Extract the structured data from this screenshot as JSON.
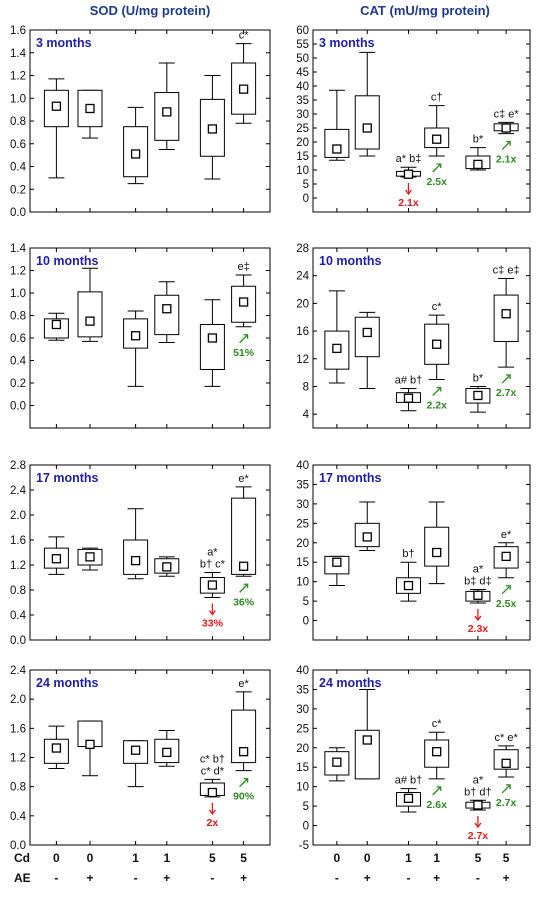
{
  "column_titles": [
    "SOD (U/mg protein)",
    "CAT (mU/mg protein)"
  ],
  "x_axis": {
    "rows": [
      {
        "label": "Cd",
        "values": [
          "0",
          "0",
          "1",
          "1",
          "5",
          "5"
        ]
      },
      {
        "label": "AE",
        "values": [
          "-",
          "+",
          "-",
          "+",
          "-",
          "+"
        ]
      }
    ]
  },
  "colors": {
    "title": "#1f3a8a",
    "panel_label": "#1f1fa8",
    "decrease": "#e31a1c",
    "increase": "#2e8b22",
    "box": "#000000"
  },
  "chart_data": [
    {
      "type": "box",
      "title": "3 months",
      "column": "SOD (U/mg protein)",
      "ylim": [
        0,
        1.6
      ],
      "yticks": [
        "0.0",
        "0.2",
        "0.4",
        "0.6",
        "0.8",
        "1.0",
        "1.2",
        "1.4",
        "1.6"
      ],
      "categories": [
        "Cd 0 / AE -",
        "Cd 0 / AE +",
        "Cd 1 / AE -",
        "Cd 1 / AE +",
        "Cd 5 / AE -",
        "Cd 5 / AE +"
      ],
      "boxes": [
        {
          "min": 0.3,
          "q1": 0.75,
          "median": 0.92,
          "mean": 0.93,
          "q3": 1.07,
          "max": 1.17
        },
        {
          "min": 0.65,
          "q1": 0.75,
          "median": 0.95,
          "mean": 0.91,
          "q3": 1.07,
          "max": 1.07
        },
        {
          "min": 0.25,
          "q1": 0.31,
          "median": 0.55,
          "mean": 0.51,
          "q3": 0.75,
          "max": 0.92
        },
        {
          "min": 0.55,
          "q1": 0.63,
          "median": 0.85,
          "mean": 0.88,
          "q3": 1.05,
          "max": 1.31
        },
        {
          "min": 0.29,
          "q1": 0.49,
          "median": 0.7,
          "mean": 0.73,
          "q3": 0.99,
          "max": 1.2
        },
        {
          "min": 0.78,
          "q1": 0.86,
          "median": 1.1,
          "mean": 1.08,
          "q3": 1.31,
          "max": 1.48
        }
      ],
      "annotations": [
        {
          "category": 5,
          "text": "c*"
        }
      ],
      "fold_changes": []
    },
    {
      "type": "box",
      "title": "3 months",
      "column": "CAT (mU/mg protein)",
      "ylim": [
        -5,
        60
      ],
      "yticks": [
        "0",
        "5",
        "10",
        "15",
        "20",
        "25",
        "30",
        "35",
        "40",
        "45",
        "50",
        "55",
        "60"
      ],
      "categories": [
        "Cd 0 / AE -",
        "Cd 0 / AE +",
        "Cd 1 / AE -",
        "Cd 1 / AE +",
        "Cd 5 / AE -",
        "Cd 5 / AE +"
      ],
      "boxes": [
        {
          "min": 13.5,
          "q1": 14.5,
          "median": 17.0,
          "mean": 17.5,
          "q3": 24.5,
          "max": 38.5
        },
        {
          "min": 15.0,
          "q1": 17.5,
          "median": 24.0,
          "mean": 25.0,
          "q3": 36.5,
          "max": 52.0
        },
        {
          "min": 7.5,
          "q1": 7.8,
          "median": 8.5,
          "mean": 8.5,
          "q3": 9.5,
          "max": 11.0
        },
        {
          "min": 15.0,
          "q1": 18.0,
          "median": 21.0,
          "mean": 21.0,
          "q3": 25.0,
          "max": 33.0
        },
        {
          "min": 10.0,
          "q1": 10.5,
          "median": 12.0,
          "mean": 12.0,
          "q3": 15.0,
          "max": 18.0
        },
        {
          "min": 23.0,
          "q1": 24.0,
          "median": 25.0,
          "mean": 25.0,
          "q3": 26.5,
          "max": 27.0
        }
      ],
      "annotations": [
        {
          "category": 2,
          "text": "a* b‡"
        },
        {
          "category": 3,
          "text": "c†"
        },
        {
          "category": 4,
          "text": "b*"
        },
        {
          "category": 5,
          "text": "c‡ e*"
        }
      ],
      "fold_changes": [
        {
          "category": 2,
          "direction": "down",
          "text": "2.1x"
        },
        {
          "category": 3,
          "direction": "up",
          "text": "2.5x"
        },
        {
          "category": 5,
          "direction": "up",
          "text": "2.1x"
        }
      ]
    },
    {
      "type": "box",
      "title": "10 months",
      "column": "SOD (U/mg protein)",
      "ylim": [
        -0.2,
        1.4
      ],
      "yticks": [
        "0.0",
        "0.2",
        "0.4",
        "0.6",
        "0.8",
        "1.0",
        "1.2",
        "1.4"
      ],
      "categories": [
        "Cd 0 / AE -",
        "Cd 0 / AE +",
        "Cd 1 / AE -",
        "Cd 1 / AE +",
        "Cd 5 / AE -",
        "Cd 5 / AE +"
      ],
      "boxes": [
        {
          "min": 0.58,
          "q1": 0.6,
          "median": 0.7,
          "mean": 0.72,
          "q3": 0.77,
          "max": 0.82
        },
        {
          "min": 0.57,
          "q1": 0.61,
          "median": 0.75,
          "mean": 0.75,
          "q3": 1.01,
          "max": 1.22
        },
        {
          "min": 0.17,
          "q1": 0.51,
          "median": 0.65,
          "mean": 0.62,
          "q3": 0.77,
          "max": 0.84
        },
        {
          "min": 0.56,
          "q1": 0.63,
          "median": 0.86,
          "mean": 0.86,
          "q3": 0.98,
          "max": 1.1
        },
        {
          "min": 0.17,
          "q1": 0.32,
          "median": 0.55,
          "mean": 0.6,
          "q3": 0.72,
          "max": 0.94
        },
        {
          "min": 0.7,
          "q1": 0.74,
          "median": 0.93,
          "mean": 0.92,
          "q3": 1.06,
          "max": 1.16
        }
      ],
      "annotations": [
        {
          "category": 5,
          "text": "e‡"
        }
      ],
      "fold_changes": [
        {
          "category": 5,
          "direction": "up",
          "text": "51%"
        }
      ]
    },
    {
      "type": "box",
      "title": "10 months",
      "column": "CAT (mU/mg protein)",
      "ylim": [
        2,
        28
      ],
      "yticks": [
        "4",
        "8",
        "12",
        "16",
        "20",
        "24",
        "28"
      ],
      "categories": [
        "Cd 0 / AE -",
        "Cd 0 / AE +",
        "Cd 1 / AE -",
        "Cd 1 / AE +",
        "Cd 5 / AE -",
        "Cd 5 / AE +"
      ],
      "boxes": [
        {
          "min": 8.5,
          "q1": 10.5,
          "median": 13.0,
          "mean": 13.5,
          "q3": 16.0,
          "max": 21.8
        },
        {
          "min": 7.7,
          "q1": 12.3,
          "median": 16.0,
          "mean": 15.8,
          "q3": 18.0,
          "max": 18.7
        },
        {
          "min": 4.5,
          "q1": 5.7,
          "median": 6.5,
          "mean": 6.3,
          "q3": 7.1,
          "max": 7.7
        },
        {
          "min": 9.0,
          "q1": 11.2,
          "median": 14.0,
          "mean": 14.1,
          "q3": 17.0,
          "max": 18.3
        },
        {
          "min": 4.3,
          "q1": 5.6,
          "median": 6.5,
          "mean": 6.7,
          "q3": 7.7,
          "max": 8.0
        },
        {
          "min": 10.8,
          "q1": 14.5,
          "median": 18.5,
          "mean": 18.5,
          "q3": 21.2,
          "max": 23.6
        }
      ],
      "annotations": [
        {
          "category": 2,
          "text": "a# b†"
        },
        {
          "category": 3,
          "text": "c*"
        },
        {
          "category": 4,
          "text": "b*"
        },
        {
          "category": 5,
          "text": "c‡ e‡"
        }
      ],
      "fold_changes": [
        {
          "category": 3,
          "direction": "up",
          "text": "2.2x"
        },
        {
          "category": 5,
          "direction": "up",
          "text": "2.7x"
        }
      ]
    },
    {
      "type": "box",
      "title": "17 months",
      "column": "SOD (U/mg protein)",
      "ylim": [
        0,
        2.8
      ],
      "yticks": [
        "0.0",
        "0.4",
        "0.8",
        "1.2",
        "1.6",
        "2.0",
        "2.4",
        "2.8"
      ],
      "categories": [
        "Cd 0 / AE -",
        "Cd 0 / AE +",
        "Cd 1 / AE -",
        "Cd 1 / AE +",
        "Cd 5 / AE -",
        "Cd 5 / AE +"
      ],
      "boxes": [
        {
          "min": 1.05,
          "q1": 1.15,
          "median": 1.3,
          "mean": 1.3,
          "q3": 1.47,
          "max": 1.65
        },
        {
          "min": 1.12,
          "q1": 1.2,
          "median": 1.3,
          "mean": 1.33,
          "q3": 1.45,
          "max": 1.47
        },
        {
          "min": 0.98,
          "q1": 1.05,
          "median": 1.25,
          "mean": 1.27,
          "q3": 1.6,
          "max": 2.1
        },
        {
          "min": 1.02,
          "q1": 1.07,
          "median": 1.2,
          "mean": 1.17,
          "q3": 1.3,
          "max": 1.33
        },
        {
          "min": 0.68,
          "q1": 0.75,
          "median": 0.88,
          "mean": 0.88,
          "q3": 1.0,
          "max": 1.08
        },
        {
          "min": 1.02,
          "q1": 1.05,
          "median": 1.25,
          "mean": 1.18,
          "q3": 2.27,
          "max": 2.45
        }
      ],
      "annotations": [
        {
          "category": 4,
          "text": "a*"
        },
        {
          "category": 4,
          "text": "b† c*"
        },
        {
          "category": 5,
          "text": "e*"
        }
      ],
      "fold_changes": [
        {
          "category": 4,
          "direction": "down",
          "text": "33%"
        },
        {
          "category": 5,
          "direction": "up",
          "text": "36%"
        }
      ]
    },
    {
      "type": "box",
      "title": "17 months",
      "column": "CAT (mU/mg protein)",
      "ylim": [
        -5,
        40
      ],
      "yticks": [
        "0",
        "5",
        "10",
        "15",
        "20",
        "25",
        "30",
        "35",
        "40"
      ],
      "categories": [
        "Cd 0 / AE -",
        "Cd 0 / AE +",
        "Cd 1 / AE -",
        "Cd 1 / AE +",
        "Cd 5 / AE -",
        "Cd 5 / AE +"
      ],
      "boxes": [
        {
          "min": 9.0,
          "q1": 12.0,
          "median": 15.0,
          "mean": 15.0,
          "q3": 16.5,
          "max": 16.5
        },
        {
          "min": 18.0,
          "q1": 19.0,
          "median": 21.0,
          "mean": 21.5,
          "q3": 25.0,
          "max": 30.5
        },
        {
          "min": 5.0,
          "q1": 7.0,
          "median": 9.0,
          "mean": 9.0,
          "q3": 11.0,
          "max": 15.0
        },
        {
          "min": 9.5,
          "q1": 14.0,
          "median": 17.0,
          "mean": 17.5,
          "q3": 24.0,
          "max": 30.5
        },
        {
          "min": 4.5,
          "q1": 5.0,
          "median": 6.5,
          "mean": 6.5,
          "q3": 7.5,
          "max": 8.0
        },
        {
          "min": 11.0,
          "q1": 13.5,
          "median": 16.5,
          "mean": 16.5,
          "q3": 19.0,
          "max": 20.0
        }
      ],
      "annotations": [
        {
          "category": 2,
          "text": "b†"
        },
        {
          "category": 4,
          "text": "a*"
        },
        {
          "category": 4,
          "text": "b‡ d‡"
        },
        {
          "category": 5,
          "text": "e*"
        }
      ],
      "fold_changes": [
        {
          "category": 4,
          "direction": "down",
          "text": "2.3x"
        },
        {
          "category": 5,
          "direction": "up",
          "text": "2.5x"
        }
      ]
    },
    {
      "type": "box",
      "title": "24 months",
      "column": "SOD (U/mg protein)",
      "ylim": [
        0,
        2.4
      ],
      "yticks": [
        "0.0",
        "0.4",
        "0.8",
        "1.2",
        "1.6",
        "2.0",
        "2.4"
      ],
      "categories": [
        "Cd 0 / AE -",
        "Cd 0 / AE +",
        "Cd 1 / AE -",
        "Cd 1 / AE +",
        "Cd 5 / AE -",
        "Cd 5 / AE +"
      ],
      "boxes": [
        {
          "min": 1.05,
          "q1": 1.12,
          "median": 1.3,
          "mean": 1.33,
          "q3": 1.45,
          "max": 1.63
        },
        {
          "min": 0.95,
          "q1": 1.35,
          "median": 1.35,
          "mean": 1.38,
          "q3": 1.7,
          "max": 1.7
        },
        {
          "min": 0.8,
          "q1": 1.12,
          "median": 1.3,
          "mean": 1.3,
          "q3": 1.43,
          "max": 1.43
        },
        {
          "min": 1.08,
          "q1": 1.13,
          "median": 1.25,
          "mean": 1.27,
          "q3": 1.45,
          "max": 1.57
        },
        {
          "min": 0.66,
          "q1": 0.68,
          "median": 0.72,
          "mean": 0.72,
          "q3": 0.85,
          "max": 0.9
        },
        {
          "min": 1.02,
          "q1": 1.13,
          "median": 1.3,
          "mean": 1.28,
          "q3": 1.85,
          "max": 2.1
        }
      ],
      "annotations": [
        {
          "category": 4,
          "text": "c* b†"
        },
        {
          "category": 4,
          "text": "c* d*"
        },
        {
          "category": 5,
          "text": "e*"
        }
      ],
      "fold_changes": [
        {
          "category": 4,
          "direction": "down",
          "text": "2x"
        },
        {
          "category": 5,
          "direction": "up",
          "text": "90%"
        }
      ]
    },
    {
      "type": "box",
      "title": "24 months",
      "column": "CAT (mU/mg protein)",
      "ylim": [
        -5,
        40
      ],
      "yticks": [
        "-5",
        "0",
        "5",
        "10",
        "15",
        "20",
        "25",
        "30",
        "35",
        "40"
      ],
      "categories": [
        "Cd 0 / AE -",
        "Cd 0 / AE +",
        "Cd 1 / AE -",
        "Cd 1 / AE +",
        "Cd 5 / AE -",
        "Cd 5 / AE +"
      ],
      "boxes": [
        {
          "min": 11.5,
          "q1": 13.0,
          "median": 16.0,
          "mean": 16.3,
          "q3": 19.0,
          "max": 20.0
        },
        {
          "min": 12.0,
          "q1": 12.0,
          "median": 21.0,
          "mean": 22.0,
          "q3": 24.5,
          "max": 35.0
        },
        {
          "min": 3.5,
          "q1": 5.0,
          "median": 6.5,
          "mean": 7.0,
          "q3": 8.5,
          "max": 9.5
        },
        {
          "min": 12.0,
          "q1": 15.0,
          "median": 19.0,
          "mean": 19.0,
          "q3": 22.0,
          "max": 24.0
        },
        {
          "min": 4.0,
          "q1": 4.5,
          "median": 5.5,
          "mean": 5.3,
          "q3": 6.0,
          "max": 6.5
        },
        {
          "min": 12.5,
          "q1": 14.5,
          "median": 16.0,
          "mean": 16.0,
          "q3": 19.5,
          "max": 20.5
        }
      ],
      "annotations": [
        {
          "category": 2,
          "text": "a# b†"
        },
        {
          "category": 3,
          "text": "c*"
        },
        {
          "category": 4,
          "text": "a*"
        },
        {
          "category": 4,
          "text": "b† d†"
        },
        {
          "category": 5,
          "text": "c* e*"
        }
      ],
      "fold_changes": [
        {
          "category": 3,
          "direction": "up",
          "text": "2.6x"
        },
        {
          "category": 4,
          "direction": "down",
          "text": "2.7x"
        },
        {
          "category": 5,
          "direction": "up",
          "text": "2.7x"
        }
      ]
    }
  ]
}
